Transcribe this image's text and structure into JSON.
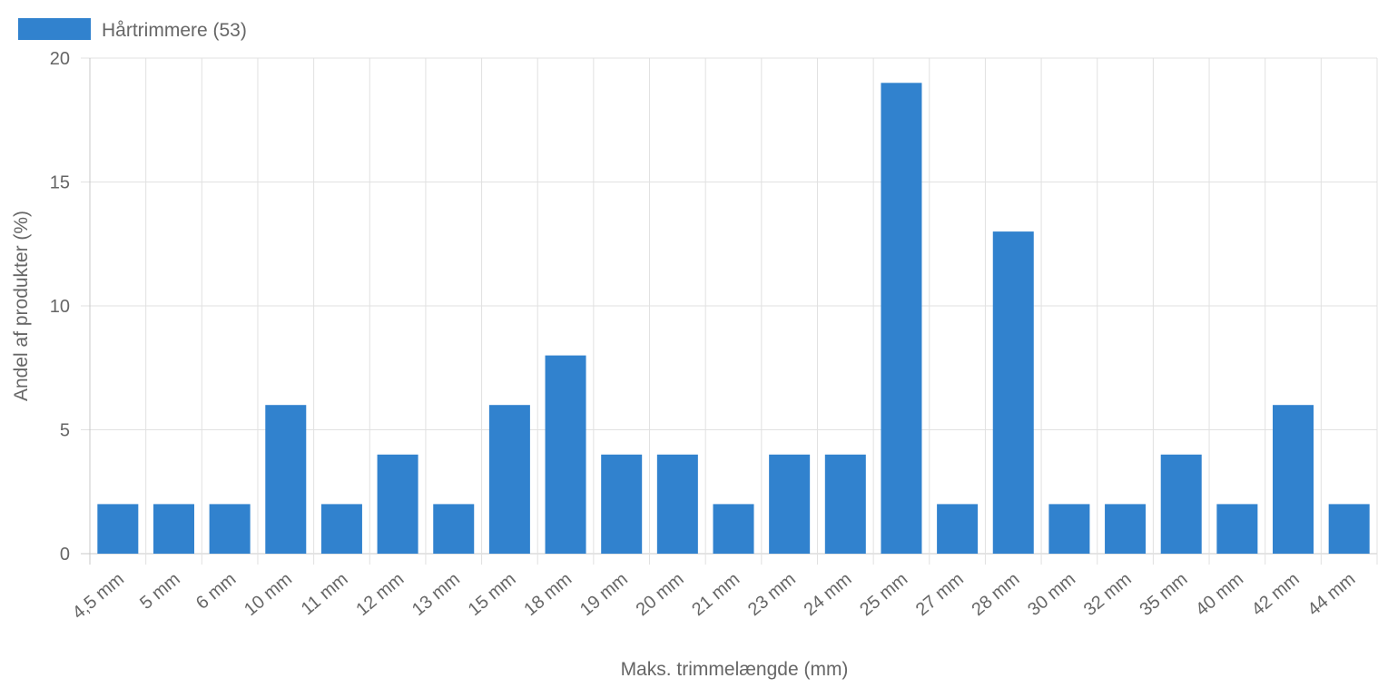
{
  "chart_data": {
    "type": "bar",
    "title": "",
    "xlabel": "Maks. trimmelængde (mm)",
    "ylabel": "Andel af produkter (%)",
    "categories": [
      "4,5 mm",
      "5 mm",
      "6 mm",
      "10 mm",
      "11 mm",
      "12 mm",
      "13 mm",
      "15 mm",
      "18 mm",
      "19 mm",
      "20 mm",
      "21 mm",
      "23 mm",
      "24 mm",
      "25 mm",
      "27 mm",
      "28 mm",
      "30 mm",
      "32 mm",
      "35 mm",
      "40 mm",
      "42 mm",
      "44 mm"
    ],
    "series": [
      {
        "name": "Hårtrimmere (53)",
        "color": "#3182ce",
        "values": [
          2,
          2,
          2,
          6,
          2,
          4,
          2,
          6,
          8,
          4,
          4,
          2,
          4,
          4,
          19,
          2,
          13,
          2,
          2,
          4,
          2,
          6,
          2
        ]
      }
    ],
    "ylim": [
      0,
      20
    ],
    "yticks": [
      0,
      5,
      10,
      15,
      20
    ],
    "grid": true,
    "legend_position": "top-left"
  }
}
